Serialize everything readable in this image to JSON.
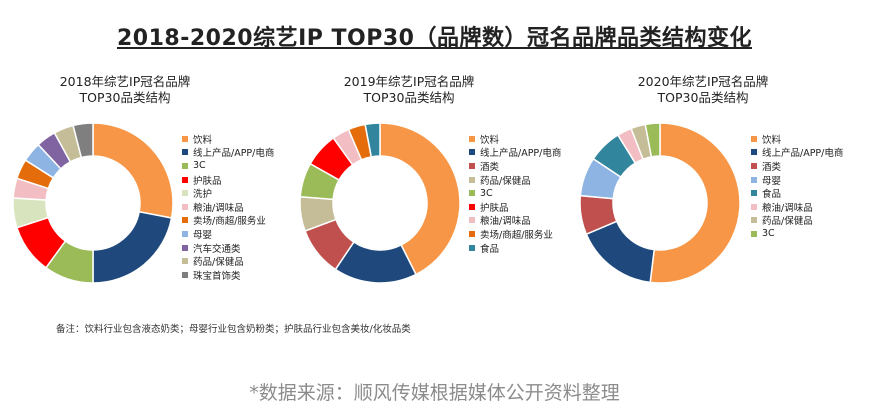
{
  "main_title": "2018-2020综艺IP TOP30（品牌数）冠名品牌品类结构变化",
  "note": "备注：饮料行业包含液态奶类；母婴行业包含奶粉类；护肤品行业包含美妆/化妆品类",
  "source": "*数据来源：顺风传媒根据媒体公开资料整理",
  "colors": {
    "饮料": "#F79646",
    "线上产品/APP/电商": "#1F497D",
    "3C": "#9BBB59",
    "护肤品": "#FF0000",
    "洗护": "#D7E4BD",
    "粮油/调味品": "#F2BEC3",
    "卖场/商超/服务业": "#E46C0A",
    "母婴": "#8EB4E3",
    "汽车交通类": "#8064A2",
    "药品/保健品": "#C4BD97",
    "珠宝首饰类": "#7F7F7F",
    "酒类": "#C0504D",
    "食品": "#31859C"
  },
  "chart_data": [
    {
      "type": "pie",
      "title_line1": "2018年综艺IP冠名品牌",
      "title_line2": "TOP30品类结构",
      "categories": [
        "饮料",
        "线上产品/APP/电商",
        "3C",
        "护肤品",
        "洗护",
        "粮油/调味品",
        "卖场/商超/服务业",
        "母婴",
        "汽车交通类",
        "药品/保健品",
        "珠宝首饰类"
      ],
      "values": [
        28,
        22,
        10,
        10,
        6,
        4,
        4,
        4,
        4,
        4,
        4
      ]
    },
    {
      "type": "pie",
      "title_line1": "2019年综艺IP冠名品牌",
      "title_line2": "TOP30品类结构",
      "categories": [
        "饮料",
        "线上产品/APP/电商",
        "酒类",
        "药品/保健品",
        "3C",
        "护肤品",
        "粮油/调味品",
        "卖场/商超/服务业",
        "食品"
      ],
      "values": [
        43,
        17,
        10,
        7,
        7,
        7,
        3.5,
        3.5,
        3
      ]
    },
    {
      "type": "pie",
      "title_line1": "2020年综艺IP冠名品牌",
      "title_line2": "TOP30品类结构",
      "categories": [
        "饮料",
        "线上产品/APP/电商",
        "酒类",
        "母婴",
        "食品",
        "粮油/调味品",
        "药品/保健品",
        "3C"
      ],
      "values": [
        53,
        17,
        8,
        8,
        7,
        3,
        3,
        3
      ]
    }
  ]
}
